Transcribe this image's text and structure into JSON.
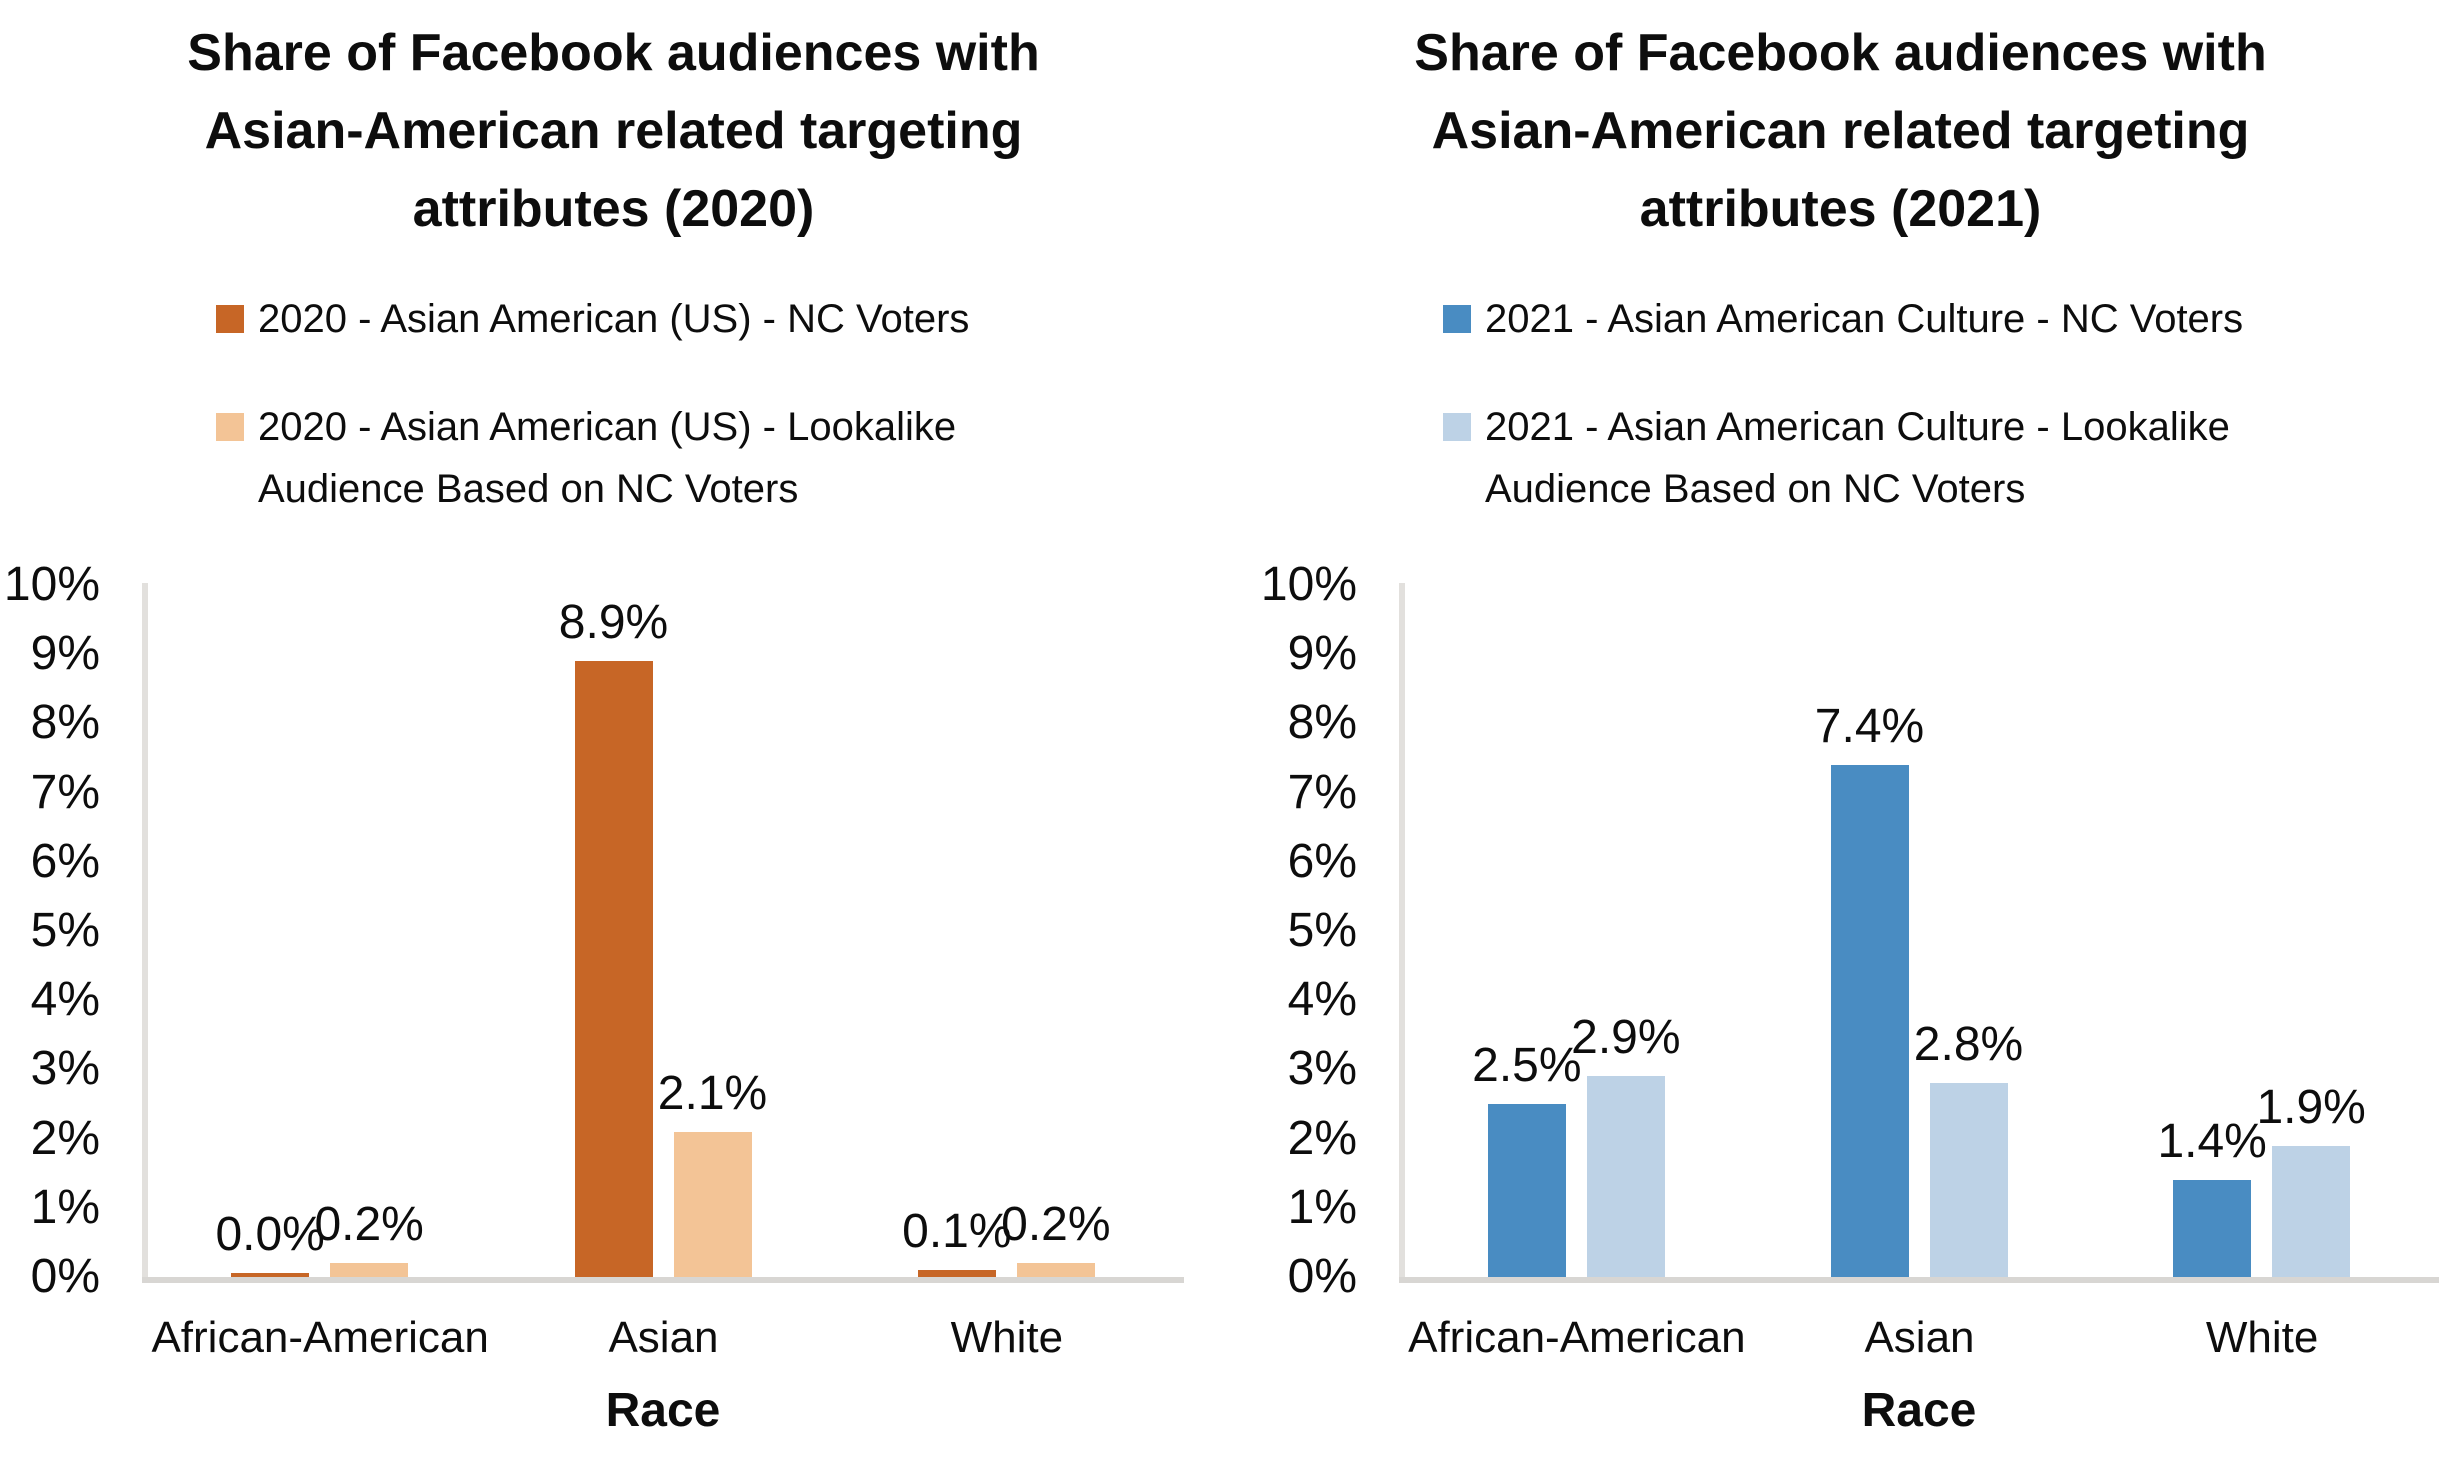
{
  "chart_data": [
    {
      "type": "bar",
      "title": "Share of Facebook audiences with Asian-American related targeting attributes (2020)",
      "title_lines": [
        "Share of Facebook audiences with",
        "Asian-American related targeting",
        "attributes (2020)"
      ],
      "categories": [
        "African-American",
        "Asian",
        "White"
      ],
      "series": [
        {
          "name": "2020 - Asian American (US) - NC Voters",
          "legend_lines": [
            "2020 - Asian American (US) - NC Voters"
          ],
          "color": "#C76626",
          "values": [
            0.0,
            8.9,
            0.1
          ],
          "labels": [
            "0.0%",
            "8.9%",
            "0.1%"
          ]
        },
        {
          "name": "2020 - Asian American (US) - Lookalike Audience Based on NC Voters",
          "legend_lines": [
            "2020 - Asian American (US) - Lookalike",
            "Audience Based on NC Voters"
          ],
          "color": "#F3C496",
          "values": [
            0.2,
            2.1,
            0.2
          ],
          "labels": [
            "0.2%",
            "2.1%",
            "0.2%"
          ]
        }
      ],
      "xlabel": "Race",
      "y_ticks": [
        "0%",
        "1%",
        "2%",
        "3%",
        "4%",
        "5%",
        "6%",
        "7%",
        "8%",
        "9%",
        "10%"
      ],
      "ylim": [
        0,
        10
      ],
      "grid": false,
      "legend_position": "top"
    },
    {
      "type": "bar",
      "title": "Share of Facebook audiences with Asian-American related targeting attributes (2021)",
      "title_lines": [
        "Share of Facebook audiences with",
        "Asian-American related targeting",
        "attributes (2021)"
      ],
      "categories": [
        "African-American",
        "Asian",
        "White"
      ],
      "series": [
        {
          "name": "2021 - Asian American Culture - NC Voters",
          "legend_lines": [
            "2021 - Asian American Culture - NC Voters"
          ],
          "color": "#498CC2",
          "values": [
            2.5,
            7.4,
            1.4
          ],
          "labels": [
            "2.5%",
            "7.4%",
            "1.4%"
          ]
        },
        {
          "name": "2021 - Asian American Culture - Lookalike Audience Based on NC Voters",
          "legend_lines": [
            "2021 - Asian American Culture - Lookalike",
            "Audience Based on NC Voters"
          ],
          "color": "#BDD2E6",
          "values": [
            2.9,
            2.8,
            1.9
          ],
          "labels": [
            "2.9%",
            "2.8%",
            "1.9%"
          ]
        }
      ],
      "xlabel": "Race",
      "y_ticks": [
        "0%",
        "1%",
        "2%",
        "3%",
        "4%",
        "5%",
        "6%",
        "7%",
        "8%",
        "9%",
        "10%"
      ],
      "ylim": [
        0,
        10
      ],
      "grid": false,
      "legend_position": "top"
    }
  ]
}
